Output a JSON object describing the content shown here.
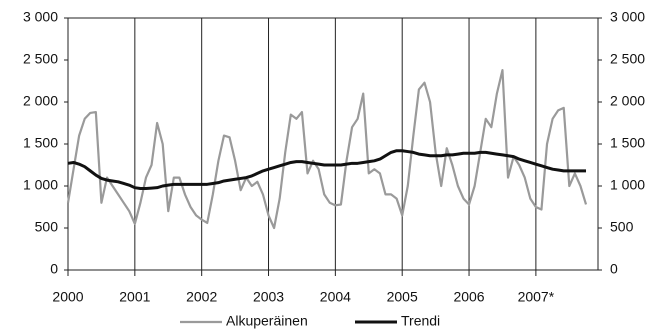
{
  "chart_data": {
    "type": "line",
    "categories": [
      "2000",
      null,
      null,
      null,
      null,
      null,
      null,
      null,
      null,
      null,
      null,
      null,
      "2001",
      null,
      null,
      null,
      null,
      null,
      null,
      null,
      null,
      null,
      null,
      null,
      "2002",
      null,
      null,
      null,
      null,
      null,
      null,
      null,
      null,
      null,
      null,
      null,
      "2003",
      null,
      null,
      null,
      null,
      null,
      null,
      null,
      null,
      null,
      null,
      null,
      "2004",
      null,
      null,
      null,
      null,
      null,
      null,
      null,
      null,
      null,
      null,
      null,
      "2005",
      null,
      null,
      null,
      null,
      null,
      null,
      null,
      null,
      null,
      null,
      null,
      "2006",
      null,
      null,
      null,
      null,
      null,
      null,
      null,
      null,
      null,
      null,
      null,
      "2007*",
      null,
      null,
      null,
      null,
      null,
      null,
      null,
      null,
      null
    ],
    "series": [
      {
        "name": "Alkuperäinen",
        "color": "#9a9a9a",
        "values": [
          800,
          1200,
          1600,
          1800,
          1870,
          1880,
          800,
          1100,
          1000,
          900,
          800,
          700,
          550,
          800,
          1100,
          1250,
          1750,
          1500,
          700,
          1100,
          1100,
          900,
          750,
          650,
          600,
          560,
          900,
          1300,
          1600,
          1580,
          1300,
          950,
          1100,
          1000,
          1050,
          900,
          650,
          500,
          850,
          1400,
          1850,
          1800,
          1880,
          1150,
          1300,
          1200,
          900,
          800,
          770,
          780,
          1300,
          1700,
          1800,
          2100,
          1150,
          1200,
          1150,
          900,
          900,
          850,
          650,
          1000,
          1600,
          2150,
          2230,
          2000,
          1400,
          1000,
          1450,
          1250,
          1000,
          850,
          780,
          1000,
          1400,
          1800,
          1700,
          2100,
          2380,
          1100,
          1350,
          1250,
          1100,
          850,
          750,
          720,
          1500,
          1800,
          1900,
          1930,
          1000,
          1150,
          1000,
          780
        ]
      },
      {
        "name": "Trendi",
        "color": "#111111",
        "values": [
          1270,
          1280,
          1260,
          1230,
          1180,
          1130,
          1090,
          1070,
          1060,
          1050,
          1030,
          1010,
          980,
          970,
          970,
          975,
          980,
          1000,
          1010,
          1020,
          1020,
          1020,
          1020,
          1020,
          1020,
          1020,
          1030,
          1040,
          1060,
          1070,
          1080,
          1090,
          1100,
          1120,
          1150,
          1180,
          1200,
          1220,
          1240,
          1260,
          1280,
          1290,
          1290,
          1280,
          1270,
          1260,
          1250,
          1250,
          1250,
          1250,
          1260,
          1270,
          1270,
          1280,
          1290,
          1300,
          1320,
          1360,
          1400,
          1420,
          1420,
          1410,
          1400,
          1380,
          1370,
          1360,
          1360,
          1360,
          1370,
          1370,
          1380,
          1390,
          1390,
          1390,
          1400,
          1400,
          1390,
          1380,
          1370,
          1360,
          1350,
          1320,
          1300,
          1280,
          1260,
          1240,
          1220,
          1200,
          1190,
          1180,
          1180,
          1180,
          1180,
          1180
        ]
      }
    ],
    "ylim": [
      0,
      3000
    ],
    "yticks": [
      0,
      500,
      {
        "value": 1000,
        "label": "1 000"
      },
      {
        "value": 1500,
        "label": "1 500"
      },
      {
        "value": 2000,
        "label": "2 000"
      },
      {
        "value": 2500,
        "label": "2 500"
      },
      {
        "value": 3000,
        "label": "3 000"
      }
    ],
    "y2lim": [
      0,
      3000
    ],
    "y2ticks": [
      0,
      500,
      {
        "value": 1000,
        "label": "1 000"
      },
      {
        "value": 1500,
        "label": "1 500"
      },
      {
        "value": 2000,
        "label": "2 000"
      },
      {
        "value": 2500,
        "label": "2 500"
      },
      {
        "value": 3000,
        "label": "3 000"
      }
    ],
    "grid": "x",
    "legend": "bottom"
  }
}
